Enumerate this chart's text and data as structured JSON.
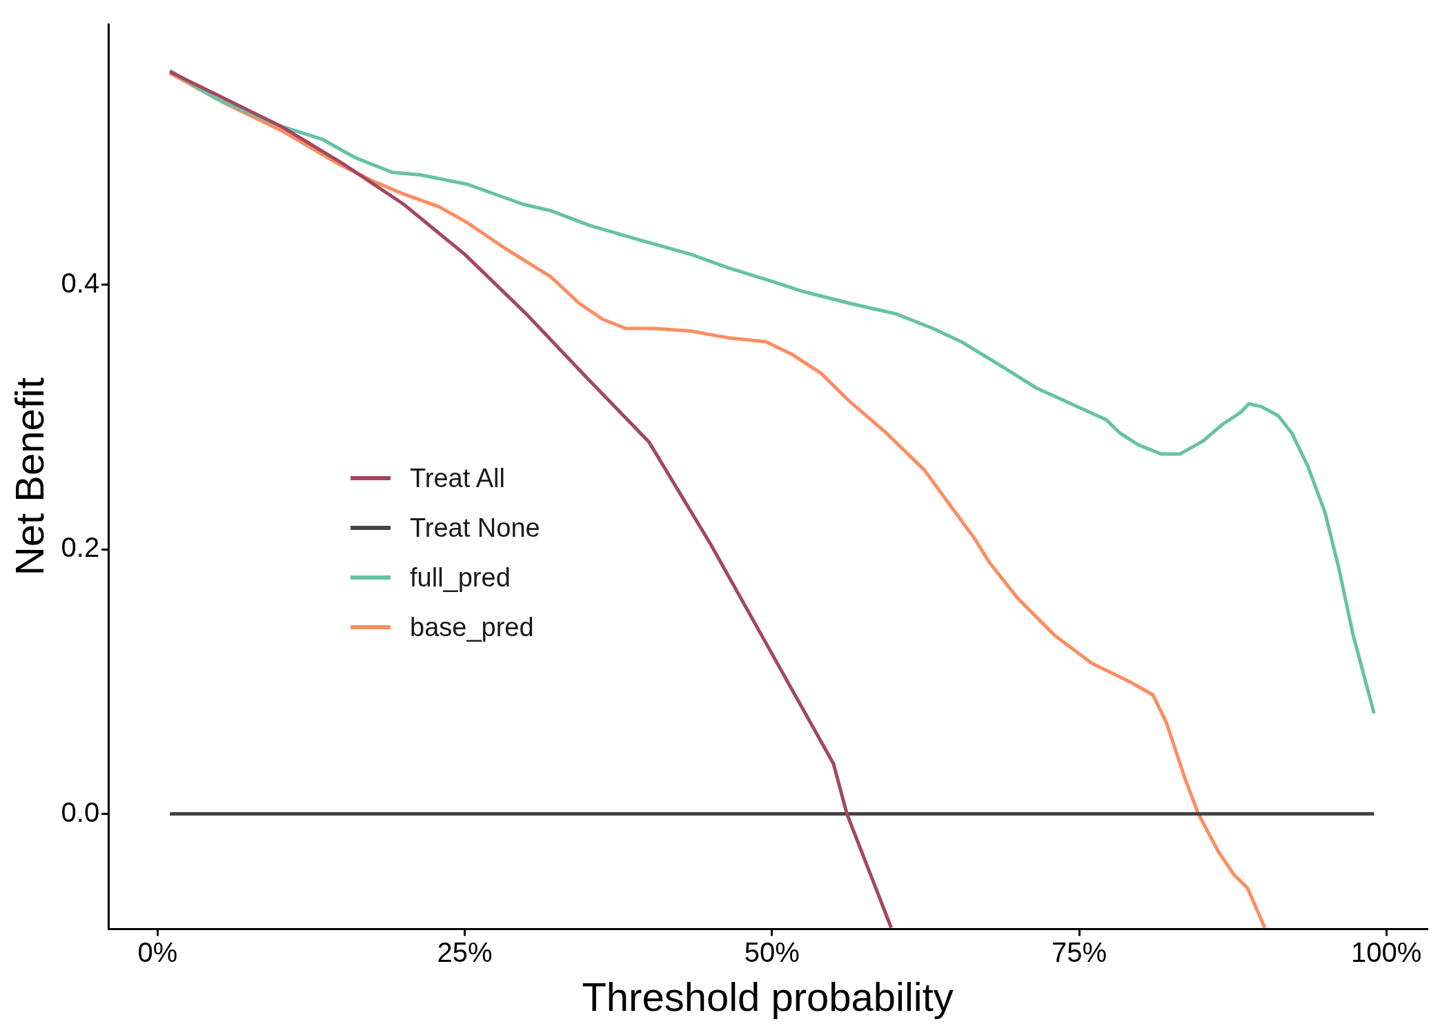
{
  "chart_data": {
    "type": "line",
    "xlabel": "Threshold probability",
    "ylabel": "Net Benefit",
    "xlim": [
      -0.04,
      1.033
    ],
    "xticks": [
      {
        "value": 0,
        "label": "0%"
      },
      {
        "value": 0.25,
        "label": "25%"
      },
      {
        "value": 0.5,
        "label": "50%"
      },
      {
        "value": 0.75,
        "label": "75%"
      },
      {
        "value": 1,
        "label": "100%"
      }
    ],
    "ylim": [
      -0.087,
      0.597
    ],
    "yticks": [
      {
        "value": 0,
        "label": "0.0"
      },
      {
        "value": 0.2,
        "label": "0.2"
      },
      {
        "value": 0.4,
        "label": "0.4"
      }
    ],
    "grid": false,
    "legend": "left",
    "marker": "none",
    "line_style": "solid",
    "series": [
      {
        "name": "Treat All",
        "color": "#a3485e",
        "x": [
          0.01,
          0.1,
          0.15,
          0.2,
          0.25,
          0.3,
          0.35,
          0.4,
          0.45,
          0.5,
          0.55,
          0.561,
          0.597
        ],
        "values": [
          0.561,
          0.52,
          0.492,
          0.461,
          0.423,
          0.378,
          0.329,
          0.281,
          0.204,
          0.121,
          0.038,
          0,
          -0.086
        ]
      },
      {
        "name": "Treat None",
        "color": "#454545",
        "x": [
          0.01,
          0.99
        ],
        "values": [
          0,
          0
        ]
      },
      {
        "name": "full_pred",
        "color": "#66c2a5",
        "x": [
          0.01,
          0.047,
          0.1,
          0.134,
          0.161,
          0.191,
          0.214,
          0.252,
          0.297,
          0.32,
          0.351,
          0.388,
          0.434,
          0.464,
          0.502,
          0.525,
          0.563,
          0.601,
          0.631,
          0.654,
          0.684,
          0.715,
          0.753,
          0.772,
          0.783,
          0.798,
          0.817,
          0.832,
          0.851,
          0.866,
          0.882,
          0.888,
          0.898,
          0.912,
          0.923,
          0.936,
          0.95,
          0.961,
          0.973,
          0.99
        ],
        "values": [
          0.562,
          0.541,
          0.52,
          0.51,
          0.496,
          0.485,
          0.483,
          0.476,
          0.461,
          0.456,
          0.445,
          0.435,
          0.423,
          0.413,
          0.402,
          0.395,
          0.386,
          0.378,
          0.367,
          0.357,
          0.34,
          0.322,
          0.306,
          0.298,
          0.288,
          0.279,
          0.272,
          0.272,
          0.282,
          0.294,
          0.304,
          0.31,
          0.308,
          0.301,
          0.288,
          0.263,
          0.228,
          0.187,
          0.135,
          0.076
        ]
      },
      {
        "name": "base_pred",
        "color": "#fc8d62",
        "x": [
          0.01,
          0.055,
          0.1,
          0.146,
          0.176,
          0.199,
          0.229,
          0.252,
          0.282,
          0.32,
          0.343,
          0.362,
          0.381,
          0.404,
          0.434,
          0.464,
          0.495,
          0.517,
          0.54,
          0.563,
          0.593,
          0.624,
          0.646,
          0.665,
          0.677,
          0.7,
          0.73,
          0.76,
          0.791,
          0.81,
          0.821,
          0.836,
          0.847,
          0.863,
          0.876,
          0.887,
          0.901
        ],
        "values": [
          0.56,
          0.537,
          0.517,
          0.492,
          0.478,
          0.469,
          0.459,
          0.447,
          0.428,
          0.406,
          0.386,
          0.374,
          0.367,
          0.367,
          0.365,
          0.36,
          0.357,
          0.347,
          0.333,
          0.312,
          0.288,
          0.26,
          0.232,
          0.208,
          0.19,
          0.163,
          0.135,
          0.114,
          0.1,
          0.09,
          0.069,
          0.027,
          0,
          -0.028,
          -0.046,
          -0.056,
          -0.086
        ]
      }
    ]
  }
}
